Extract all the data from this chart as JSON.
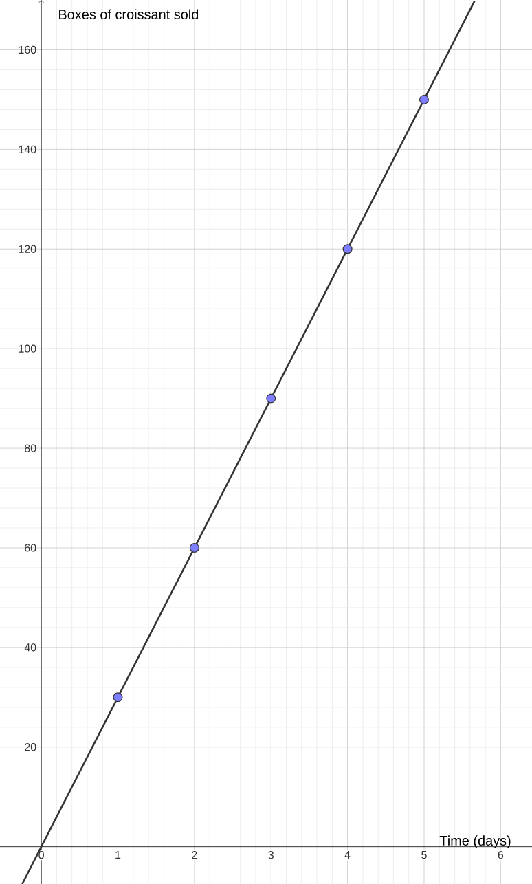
{
  "chart_data": {
    "type": "scatter",
    "xlabel": "Time (days)",
    "ylabel": "Boxes of croissant sold",
    "xlim": [
      -0.54,
      6.41
    ],
    "ylim": [
      -7.5,
      170
    ],
    "xticks": [
      0,
      1,
      2,
      3,
      4,
      5,
      6
    ],
    "yticks": [
      20,
      40,
      60,
      80,
      100,
      120,
      140,
      160
    ],
    "grid": true,
    "series": [
      {
        "type": "line",
        "color": "#333333",
        "marker": "none",
        "x": [
          -0.25,
          5.66
        ],
        "values": [
          -7.5,
          169.8
        ]
      },
      {
        "color": "#7d7dff",
        "marker": "circle",
        "x": [
          1,
          2,
          3,
          4,
          5
        ],
        "values": [
          30,
          60,
          90,
          120,
          150
        ]
      }
    ]
  }
}
